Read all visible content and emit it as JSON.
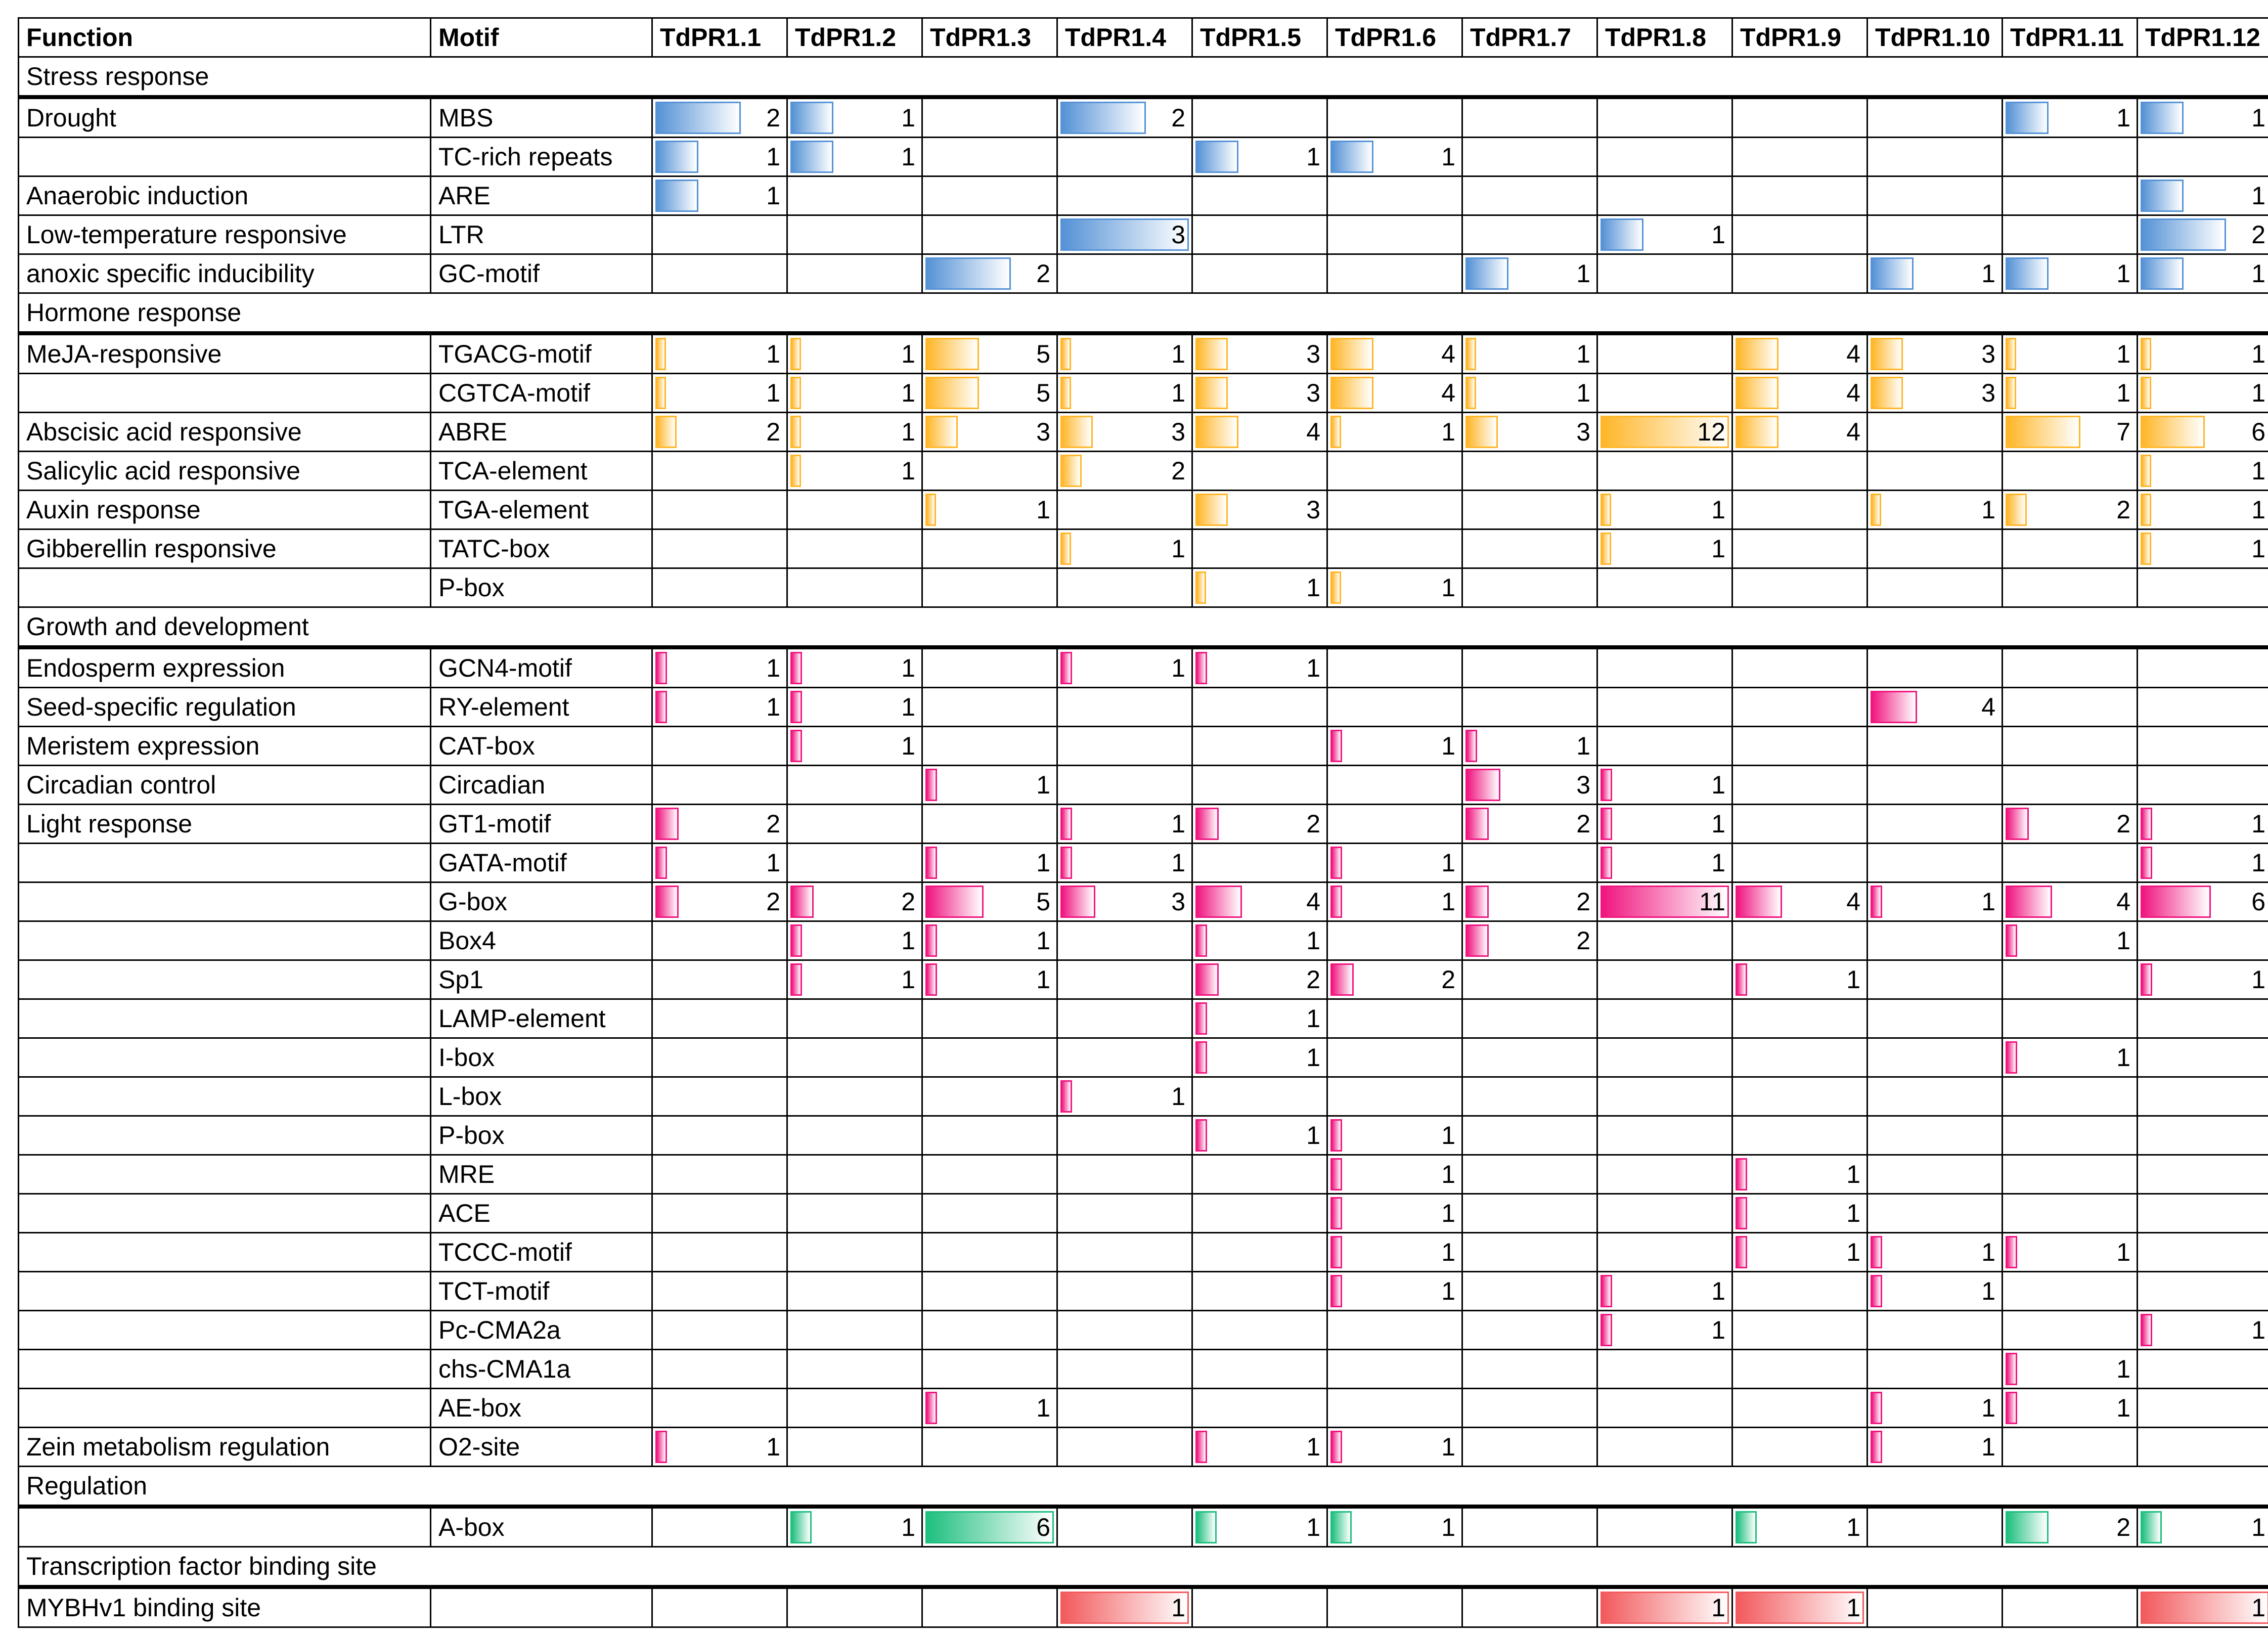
{
  "chart_data": {
    "type": "table",
    "columns": [
      "Function",
      "Motif",
      "TdPR1.1",
      "TdPR1.2",
      "TdPR1.3",
      "TdPR1.4",
      "TdPR1.5",
      "TdPR1.6",
      "TdPR1.7",
      "TdPR1.8",
      "TdPR1.9",
      "TdPR1.10",
      "TdPR1.11",
      "TdPR1.12"
    ],
    "sections": [
      {
        "name": "Stress response",
        "bar_color": "#5592D6",
        "rows": [
          {
            "function": "Drought",
            "motif": "MBS",
            "values": [
              2,
              1,
              null,
              2,
              null,
              null,
              null,
              null,
              null,
              null,
              1,
              1
            ]
          },
          {
            "motif": "TC-rich repeats",
            "values": [
              1,
              1,
              null,
              null,
              1,
              1,
              null,
              null,
              null,
              null,
              null,
              null
            ]
          },
          {
            "function": "Anaerobic induction",
            "motif": "ARE",
            "values": [
              1,
              null,
              null,
              null,
              null,
              null,
              null,
              null,
              null,
              null,
              null,
              1
            ]
          },
          {
            "function": "Low-temperature responsive",
            "motif": "LTR",
            "values": [
              null,
              null,
              null,
              3,
              null,
              null,
              null,
              1,
              null,
              null,
              null,
              2
            ]
          },
          {
            "function": "anoxic specific inducibility",
            "motif": "GC-motif",
            "values": [
              null,
              null,
              2,
              null,
              null,
              null,
              1,
              null,
              null,
              1,
              1,
              1
            ]
          }
        ]
      },
      {
        "name": "Hormone response",
        "bar_color": "#FFB628",
        "rows": [
          {
            "function": "MeJA-responsive",
            "motif": "TGACG-motif",
            "values": [
              1,
              1,
              5,
              1,
              3,
              4,
              1,
              null,
              4,
              3,
              1,
              1
            ]
          },
          {
            "motif": "CGTCA-motif",
            "values": [
              1,
              1,
              5,
              1,
              3,
              4,
              1,
              null,
              4,
              3,
              1,
              1
            ]
          },
          {
            "function": "Abscisic acid responsive",
            "motif": "ABRE",
            "values": [
              2,
              1,
              3,
              3,
              4,
              1,
              3,
              12,
              4,
              null,
              7,
              6
            ]
          },
          {
            "function": "Salicylic acid responsive",
            "motif": "TCA-element",
            "values": [
              null,
              1,
              null,
              2,
              null,
              null,
              null,
              null,
              null,
              null,
              null,
              1
            ]
          },
          {
            "function": "Auxin response",
            "motif": "TGA-element",
            "values": [
              null,
              null,
              1,
              null,
              3,
              null,
              null,
              1,
              null,
              1,
              2,
              1
            ]
          },
          {
            "function": "Gibberellin responsive",
            "motif": "TATC-box",
            "values": [
              null,
              null,
              null,
              1,
              null,
              null,
              null,
              1,
              null,
              null,
              null,
              1
            ]
          },
          {
            "motif": "P-box",
            "values": [
              null,
              null,
              null,
              null,
              1,
              1,
              null,
              null,
              null,
              null,
              null,
              null
            ]
          }
        ]
      },
      {
        "name": "Growth and development",
        "bar_color": "#F0157F",
        "rows": [
          {
            "function": "Endosperm expression",
            "motif": "GCN4-motif",
            "values": [
              1,
              1,
              null,
              1,
              1,
              null,
              null,
              null,
              null,
              null,
              null,
              null
            ]
          },
          {
            "function": "Seed-specific regulation",
            "motif": "RY-element",
            "values": [
              1,
              1,
              null,
              null,
              null,
              null,
              null,
              null,
              null,
              4,
              null,
              null
            ]
          },
          {
            "function": "Meristem expression",
            "motif": "CAT-box",
            "values": [
              null,
              1,
              null,
              null,
              null,
              1,
              1,
              null,
              null,
              null,
              null,
              null
            ]
          },
          {
            "function": "Circadian control",
            "motif": "Circadian",
            "values": [
              null,
              null,
              1,
              null,
              null,
              null,
              3,
              1,
              null,
              null,
              null,
              null
            ]
          },
          {
            "function": "Light response",
            "motif": "GT1-motif",
            "values": [
              2,
              null,
              null,
              1,
              2,
              null,
              2,
              1,
              null,
              null,
              2,
              1
            ]
          },
          {
            "motif": "GATA-motif",
            "values": [
              1,
              null,
              1,
              1,
              null,
              1,
              null,
              1,
              null,
              null,
              null,
              1
            ]
          },
          {
            "motif": "G-box",
            "values": [
              2,
              2,
              5,
              3,
              4,
              1,
              2,
              11,
              4,
              1,
              4,
              6
            ]
          },
          {
            "motif": "Box4",
            "values": [
              null,
              1,
              1,
              null,
              1,
              null,
              2,
              null,
              null,
              null,
              1,
              null
            ]
          },
          {
            "motif": "Sp1",
            "values": [
              null,
              1,
              1,
              null,
              2,
              2,
              null,
              null,
              1,
              null,
              null,
              1
            ]
          },
          {
            "motif": "LAMP-element",
            "values": [
              null,
              null,
              null,
              null,
              1,
              null,
              null,
              null,
              null,
              null,
              null,
              null
            ]
          },
          {
            "motif": "I-box",
            "values": [
              null,
              null,
              null,
              null,
              1,
              null,
              null,
              null,
              null,
              null,
              1,
              null
            ]
          },
          {
            "motif": "L-box",
            "values": [
              null,
              null,
              null,
              1,
              null,
              null,
              null,
              null,
              null,
              null,
              null,
              null
            ]
          },
          {
            "motif": "P-box",
            "values": [
              null,
              null,
              null,
              null,
              1,
              1,
              null,
              null,
              null,
              null,
              null,
              null
            ]
          },
          {
            "motif": "MRE",
            "values": [
              null,
              null,
              null,
              null,
              null,
              1,
              null,
              null,
              1,
              null,
              null,
              null
            ]
          },
          {
            "motif": "ACE",
            "values": [
              null,
              null,
              null,
              null,
              null,
              1,
              null,
              null,
              1,
              null,
              null,
              null
            ]
          },
          {
            "motif": "TCCC-motif",
            "values": [
              null,
              null,
              null,
              null,
              null,
              1,
              null,
              null,
              1,
              1,
              1,
              null
            ]
          },
          {
            "motif": "TCT-motif",
            "values": [
              null,
              null,
              null,
              null,
              null,
              1,
              null,
              1,
              null,
              1,
              null,
              null
            ]
          },
          {
            "motif": "Pc-CMA2a",
            "values": [
              null,
              null,
              null,
              null,
              null,
              null,
              null,
              1,
              null,
              null,
              null,
              1
            ]
          },
          {
            "motif": "chs-CMA1a",
            "values": [
              null,
              null,
              null,
              null,
              null,
              null,
              null,
              null,
              null,
              null,
              1,
              null
            ]
          },
          {
            "motif": "AE-box",
            "values": [
              null,
              null,
              1,
              null,
              null,
              null,
              null,
              null,
              null,
              1,
              1,
              null
            ]
          },
          {
            "function": "Zein metabolism regulation",
            "motif": "O2-site",
            "values": [
              1,
              null,
              null,
              null,
              1,
              1,
              null,
              null,
              null,
              1,
              null,
              null
            ]
          }
        ]
      },
      {
        "name": "Regulation",
        "bar_color": "#1FBF7F",
        "rows": [
          {
            "motif": "A-box",
            "values": [
              null,
              1,
              6,
              null,
              1,
              1,
              null,
              null,
              1,
              null,
              2,
              1
            ]
          }
        ]
      },
      {
        "name": "Transcription factor binding site",
        "bar_color": "#F25A5D",
        "rows": [
          {
            "function": "MYBHv1 binding site",
            "values": [
              null,
              null,
              null,
              1,
              null,
              null,
              null,
              1,
              1,
              null,
              null,
              1
            ]
          }
        ]
      }
    ]
  }
}
